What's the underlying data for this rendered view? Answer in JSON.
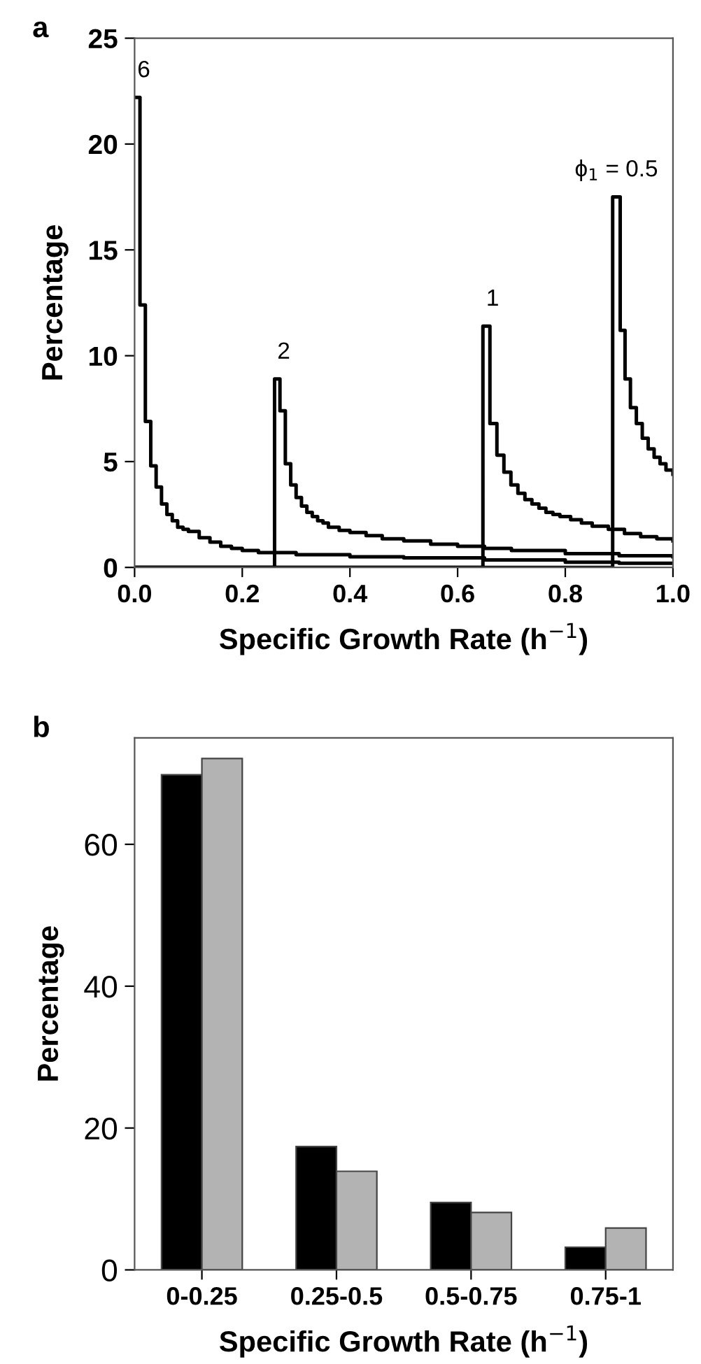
{
  "chart_data": [
    {
      "type": "step",
      "title": "a",
      "xlabel": "Specific Growth Rate (h$^{−1}$)",
      "ylabel": "Percentage",
      "xlim": [
        0,
        1
      ],
      "ylim": [
        0,
        25
      ],
      "xticks": [
        {
          "value": 0,
          "label": "0.0"
        },
        0.2,
        0.4,
        0.6,
        0.8,
        {
          "value": 1,
          "label": "1.0"
        }
      ],
      "yticks": [
        0,
        5,
        10,
        15,
        20,
        25
      ],
      "grid": false,
      "legend": false,
      "marker": "none",
      "line_style": "solid",
      "series": [
        {
          "color": "#000000",
          "x": [
            0,
            0.01,
            0.02,
            0.03,
            0.04,
            0.05,
            0.06,
            0.07,
            0.08,
            0.09,
            0.1,
            0.12,
            0.14,
            0.16,
            0.18,
            0.2,
            0.23,
            0.26,
            0.3,
            0.4,
            0.5,
            0.65,
            0.8,
            0.9,
            1.0
          ],
          "values": [
            22.2,
            12.4,
            6.9,
            4.8,
            3.8,
            3.0,
            2.5,
            2.2,
            1.9,
            1.8,
            1.7,
            1.4,
            1.2,
            1.0,
            0.9,
            0.8,
            0.7,
            0.7,
            0.6,
            0.5,
            0.45,
            0.35,
            0.25,
            0.2,
            0.2
          ]
        },
        {
          "color": "#000000",
          "x": [
            0,
            0.26,
            0.27,
            0.28,
            0.29,
            0.3,
            0.31,
            0.32,
            0.33,
            0.34,
            0.35,
            0.36,
            0.38,
            0.4,
            0.43,
            0.46,
            0.5,
            0.55,
            0.6,
            0.65,
            0.7,
            0.8,
            0.9,
            1.0
          ],
          "values": [
            0,
            8.9,
            7.4,
            4.9,
            3.9,
            3.3,
            2.9,
            2.6,
            2.4,
            2.2,
            2.1,
            1.9,
            1.75,
            1.65,
            1.5,
            1.35,
            1.25,
            1.1,
            1.0,
            0.9,
            0.8,
            0.65,
            0.55,
            0.5
          ]
        },
        {
          "color": "#000000",
          "x": [
            0,
            0.647,
            0.66,
            0.673,
            0.686,
            0.699,
            0.712,
            0.725,
            0.738,
            0.751,
            0.764,
            0.777,
            0.79,
            0.81,
            0.83,
            0.85,
            0.88,
            0.91,
            0.94,
            0.97,
            1.0
          ],
          "values": [
            0,
            11.4,
            6.8,
            5.3,
            4.5,
            3.9,
            3.5,
            3.2,
            3.0,
            2.8,
            2.6,
            2.5,
            2.4,
            2.25,
            2.1,
            1.95,
            1.8,
            1.6,
            1.45,
            1.35,
            1.25
          ]
        },
        {
          "color": "#000000",
          "x": [
            0,
            0.888,
            0.902,
            0.911,
            0.921,
            0.932,
            0.943,
            0.954,
            0.965,
            0.976,
            0.987,
            1.0
          ],
          "values": [
            0,
            17.5,
            11.2,
            8.9,
            7.55,
            6.8,
            6.1,
            5.6,
            5.2,
            4.9,
            4.6,
            4.4
          ]
        }
      ],
      "annotations": [
        {
          "text": "6",
          "x": 0.005,
          "y": 22.2
        },
        {
          "text": "2",
          "x": 0.265,
          "y": 8.9
        },
        {
          "text": "1",
          "x": 0.653,
          "y": 11.4
        },
        {
          "text": "ϕ$_{1}$ = 0.5",
          "x": 0.895,
          "y": 17.5
        }
      ]
    },
    {
      "type": "bar",
      "title": "b",
      "xlabel": "Specific Growth Rate (h$^{−1}$)",
      "ylabel": "Percentage",
      "categories": [
        "0-0.25",
        "0.25-0.5",
        "0.5-0.75",
        "0.75-1"
      ],
      "ylim": [
        0,
        75
      ],
      "yticks": [
        0,
        20,
        40,
        60
      ],
      "grid": false,
      "legend": false,
      "series": [
        {
          "color": "#000000",
          "values": [
            69.8,
            17.4,
            9.5,
            3.2
          ]
        },
        {
          "color": "#b3b3b3",
          "values": [
            72.1,
            13.9,
            8.1,
            5.9
          ]
        }
      ]
    }
  ]
}
